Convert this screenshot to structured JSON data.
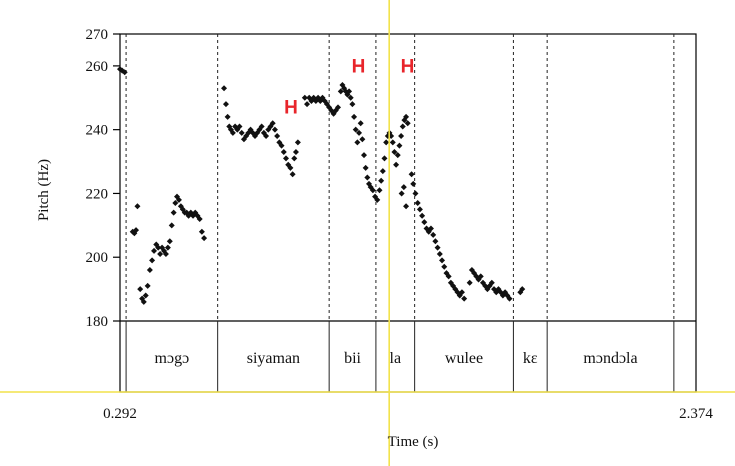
{
  "chart_data": {
    "type": "scatter",
    "title": "",
    "xlabel": "Time (s)",
    "ylabel": "Pitch (Hz)",
    "xlim": [
      0.292,
      2.374
    ],
    "ylim": [
      180,
      270
    ],
    "x_tick_labels": [
      "0.292",
      "2.374"
    ],
    "y_ticks": [
      180,
      200,
      220,
      240,
      260,
      270
    ],
    "grid": false,
    "legend": "none",
    "point_color": "#111111",
    "cursor_color": "#f2e24a",
    "tone_color": "#e8252b",
    "word_boundaries": [
      0.292,
      0.314,
      0.645,
      1.048,
      1.217,
      1.357,
      1.714,
      1.836,
      2.294
    ],
    "words": [
      {
        "text": "mɔgɔ",
        "start": 0.314,
        "end": 0.645
      },
      {
        "text": "siyaman",
        "start": 0.645,
        "end": 1.048
      },
      {
        "text": "bii",
        "start": 1.048,
        "end": 1.217
      },
      {
        "text": "la",
        "start": 1.217,
        "end": 1.357
      },
      {
        "text": "wulee",
        "start": 1.357,
        "end": 1.714
      },
      {
        "text": "kɛ",
        "start": 1.714,
        "end": 1.836
      },
      {
        "text": "mɔndɔla",
        "start": 1.836,
        "end": 2.294
      }
    ],
    "tone_labels": [
      {
        "text": "H",
        "x": 0.91,
        "y": 245
      },
      {
        "text": "H",
        "x": 1.154,
        "y": 258
      },
      {
        "text": "H",
        "x": 1.331,
        "y": 258
      }
    ],
    "cursor_time": 1.265,
    "series": [
      {
        "values": [
          [
            0.292,
            259
          ],
          [
            0.3,
            258.5
          ],
          [
            0.309,
            258
          ],
          [
            0.338,
            208
          ],
          [
            0.344,
            207.5
          ],
          [
            0.35,
            208.5
          ],
          [
            0.355,
            216
          ],
          [
            0.365,
            190
          ],
          [
            0.372,
            187
          ],
          [
            0.378,
            186
          ],
          [
            0.385,
            188
          ],
          [
            0.392,
            191
          ],
          [
            0.4,
            196
          ],
          [
            0.408,
            199
          ],
          [
            0.415,
            202
          ],
          [
            0.423,
            204
          ],
          [
            0.43,
            203
          ],
          [
            0.437,
            201
          ],
          [
            0.444,
            203
          ],
          [
            0.451,
            202
          ],
          [
            0.458,
            201
          ],
          [
            0.465,
            203
          ],
          [
            0.472,
            205
          ],
          [
            0.479,
            210
          ],
          [
            0.486,
            214
          ],
          [
            0.492,
            217
          ],
          [
            0.498,
            219
          ],
          [
            0.505,
            218
          ],
          [
            0.512,
            216
          ],
          [
            0.519,
            215
          ],
          [
            0.526,
            214
          ],
          [
            0.533,
            214
          ],
          [
            0.54,
            213
          ],
          [
            0.548,
            214
          ],
          [
            0.556,
            213
          ],
          [
            0.564,
            214
          ],
          [
            0.572,
            213
          ],
          [
            0.58,
            212
          ],
          [
            0.588,
            208
          ],
          [
            0.596,
            206
          ],
          [
            0.668,
            253
          ],
          [
            0.675,
            248
          ],
          [
            0.681,
            244
          ],
          [
            0.687,
            241
          ],
          [
            0.693,
            240
          ],
          [
            0.7,
            239
          ],
          [
            0.708,
            241
          ],
          [
            0.716,
            240
          ],
          [
            0.724,
            241
          ],
          [
            0.732,
            239
          ],
          [
            0.74,
            237
          ],
          [
            0.748,
            238
          ],
          [
            0.756,
            239
          ],
          [
            0.764,
            240
          ],
          [
            0.772,
            239
          ],
          [
            0.78,
            238
          ],
          [
            0.788,
            239
          ],
          [
            0.796,
            240
          ],
          [
            0.804,
            241
          ],
          [
            0.812,
            239
          ],
          [
            0.82,
            238
          ],
          [
            0.828,
            240
          ],
          [
            0.836,
            241
          ],
          [
            0.844,
            242
          ],
          [
            0.852,
            240
          ],
          [
            0.86,
            238
          ],
          [
            0.868,
            236
          ],
          [
            0.876,
            235
          ],
          [
            0.884,
            233
          ],
          [
            0.892,
            231
          ],
          [
            0.9,
            229
          ],
          [
            0.908,
            228
          ],
          [
            0.916,
            226
          ],
          [
            0.922,
            231
          ],
          [
            0.928,
            233
          ],
          [
            0.935,
            236
          ],
          [
            0.96,
            250
          ],
          [
            0.968,
            248
          ],
          [
            0.976,
            250
          ],
          [
            0.984,
            249
          ],
          [
            0.992,
            250
          ],
          [
            1.0,
            249
          ],
          [
            1.008,
            250
          ],
          [
            1.016,
            249
          ],
          [
            1.024,
            250
          ],
          [
            1.032,
            249
          ],
          [
            1.04,
            248
          ],
          [
            1.048,
            247
          ],
          [
            1.056,
            246
          ],
          [
            1.064,
            245
          ],
          [
            1.072,
            246
          ],
          [
            1.08,
            247
          ],
          [
            1.09,
            252
          ],
          [
            1.096,
            254
          ],
          [
            1.102,
            253
          ],
          [
            1.108,
            252
          ],
          [
            1.114,
            251
          ],
          [
            1.12,
            252
          ],
          [
            1.126,
            250
          ],
          [
            1.132,
            248
          ],
          [
            1.138,
            244
          ],
          [
            1.144,
            240
          ],
          [
            1.15,
            236
          ],
          [
            1.156,
            239
          ],
          [
            1.162,
            242
          ],
          [
            1.168,
            237
          ],
          [
            1.174,
            232
          ],
          [
            1.18,
            228
          ],
          [
            1.186,
            225
          ],
          [
            1.192,
            223
          ],
          [
            1.198,
            222
          ],
          [
            1.206,
            221
          ],
          [
            1.214,
            219
          ],
          [
            1.222,
            218
          ],
          [
            1.23,
            221
          ],
          [
            1.236,
            224
          ],
          [
            1.242,
            227
          ],
          [
            1.248,
            231
          ],
          [
            1.254,
            236
          ],
          [
            1.26,
            238
          ],
          [
            1.266,
            239
          ],
          [
            1.272,
            238
          ],
          [
            1.278,
            236
          ],
          [
            1.284,
            233
          ],
          [
            1.29,
            229
          ],
          [
            1.296,
            232
          ],
          [
            1.302,
            235
          ],
          [
            1.308,
            238
          ],
          [
            1.314,
            241
          ],
          [
            1.32,
            243
          ],
          [
            1.326,
            244
          ],
          [
            1.332,
            242
          ],
          [
            1.31,
            220
          ],
          [
            1.318,
            222
          ],
          [
            1.326,
            216
          ],
          [
            1.346,
            226
          ],
          [
            1.352,
            223
          ],
          [
            1.36,
            220
          ],
          [
            1.368,
            217
          ],
          [
            1.376,
            215
          ],
          [
            1.384,
            213
          ],
          [
            1.392,
            211
          ],
          [
            1.4,
            209
          ],
          [
            1.408,
            208
          ],
          [
            1.416,
            209
          ],
          [
            1.424,
            207
          ],
          [
            1.432,
            205
          ],
          [
            1.44,
            203
          ],
          [
            1.448,
            201
          ],
          [
            1.456,
            199
          ],
          [
            1.464,
            197
          ],
          [
            1.472,
            195
          ],
          [
            1.48,
            194
          ],
          [
            1.488,
            192
          ],
          [
            1.496,
            191
          ],
          [
            1.504,
            190
          ],
          [
            1.512,
            189
          ],
          [
            1.52,
            188
          ],
          [
            1.528,
            189
          ],
          [
            1.536,
            187
          ],
          [
            1.556,
            192
          ],
          [
            1.564,
            196
          ],
          [
            1.572,
            195
          ],
          [
            1.58,
            194
          ],
          [
            1.588,
            193
          ],
          [
            1.596,
            194
          ],
          [
            1.604,
            192
          ],
          [
            1.612,
            191
          ],
          [
            1.62,
            190
          ],
          [
            1.628,
            191
          ],
          [
            1.636,
            192
          ],
          [
            1.644,
            190
          ],
          [
            1.652,
            189
          ],
          [
            1.66,
            190
          ],
          [
            1.668,
            189
          ],
          [
            1.676,
            188
          ],
          [
            1.684,
            189
          ],
          [
            1.692,
            188
          ],
          [
            1.7,
            187
          ],
          [
            1.739,
            189
          ],
          [
            1.746,
            190
          ]
        ]
      }
    ]
  }
}
